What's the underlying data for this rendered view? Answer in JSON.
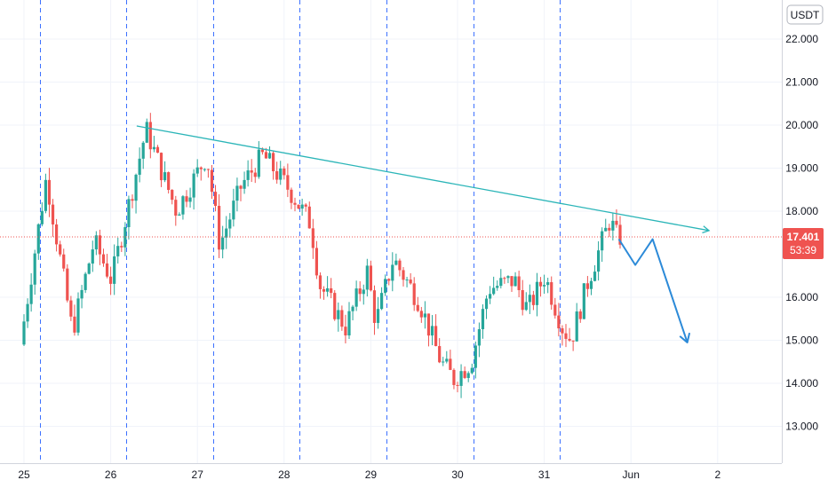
{
  "currency": "USDT",
  "colors": {
    "up": "#26a69a",
    "down": "#ef5350",
    "trendline": "#2bb5b8",
    "session_line": "#2962ff",
    "projection": "#2c8ad8",
    "price_line": "#ef5350",
    "grid": "#f0f3fa",
    "axis_border": "#d1d4dc"
  },
  "current_price_badge": {
    "price": "17.401",
    "countdown": "53:39"
  },
  "chart_data": {
    "type": "candlestick",
    "title": "",
    "xlabel": "",
    "ylabel": "",
    "x_tick_labels": [
      "25",
      "26",
      "27",
      "28",
      "29",
      "30",
      "31",
      "Jun",
      "2"
    ],
    "y_tick_labels": [
      "22.000",
      "21.000",
      "20.000",
      "19.000",
      "18.000",
      "16.000",
      "15.000",
      "14.000",
      "13.000"
    ],
    "ylim": [
      12.2,
      22.9
    ],
    "grid": true,
    "day_separators": [
      "25",
      "26",
      "27",
      "28",
      "29",
      "30",
      "31"
    ],
    "current_price": 17.401,
    "trendline": {
      "from": {
        "day": 26.3,
        "price": 19.98
      },
      "to": {
        "day": 32.9,
        "price": 17.55
      }
    },
    "projection_path": [
      {
        "day": 31.86,
        "price": 17.35
      },
      {
        "day": 32.05,
        "price": 16.75
      },
      {
        "day": 32.25,
        "price": 17.35
      },
      {
        "day": 32.65,
        "price": 14.95
      }
    ],
    "price_path": [
      [
        25.0,
        14.9
      ],
      [
        25.3,
        18.8
      ],
      [
        25.6,
        15.2
      ],
      [
        25.85,
        17.3
      ],
      [
        26.05,
        16.4
      ],
      [
        26.45,
        19.9
      ],
      [
        26.8,
        18.0
      ],
      [
        27.15,
        19.3
      ],
      [
        27.3,
        17.2
      ],
      [
        27.55,
        18.6
      ],
      [
        27.8,
        19.3
      ],
      [
        28.1,
        18.5
      ],
      [
        28.35,
        17.7
      ],
      [
        28.45,
        16.3
      ],
      [
        28.75,
        15.3
      ],
      [
        29.0,
        16.6
      ],
      [
        29.1,
        15.4
      ],
      [
        29.3,
        16.9
      ],
      [
        29.6,
        15.9
      ],
      [
        29.85,
        14.5
      ],
      [
        30.0,
        14.1
      ],
      [
        30.2,
        14.5
      ],
      [
        30.4,
        16.2
      ],
      [
        30.7,
        16.4
      ],
      [
        30.85,
        15.7
      ],
      [
        31.05,
        16.5
      ],
      [
        31.25,
        15.3
      ],
      [
        31.35,
        15.0
      ],
      [
        31.55,
        16.4
      ],
      [
        31.8,
        17.8
      ],
      [
        31.88,
        17.4
      ]
    ]
  }
}
